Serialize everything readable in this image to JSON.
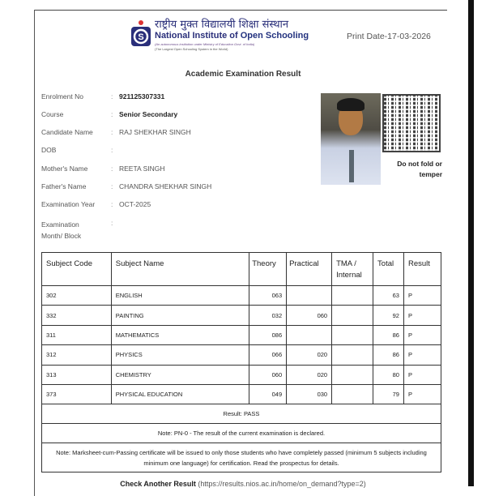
{
  "header": {
    "hindi_name": "राष्ट्रीय मुक्त विद्यालयी शिक्षा संस्थान",
    "english_name_part1": "National Institute of ",
    "english_name_part2": "Open Schooling",
    "subtitle1": "(An autonomous institution under Ministry of Education Govt. of India)",
    "subtitle2": "(The Largest Open Schooling System in the World)",
    "print_date": "Print Date-17-03-2026"
  },
  "title": "Academic Examination Result",
  "candidate": [
    {
      "label": "Enrolment No",
      "value": "921125307331",
      "bold": true
    },
    {
      "label": "Course",
      "value": "Senior Secondary",
      "bold": true
    },
    {
      "label": "Candidate Name",
      "value": "RAJ SHEKHAR SINGH"
    },
    {
      "label": "DOB",
      "value": ""
    },
    {
      "label": "Mother's Name",
      "value": "REETA SINGH"
    },
    {
      "label": "Father's Name",
      "value": "CHANDRA SHEKHAR SINGH"
    },
    {
      "label": "Examination Year",
      "value": "OCT-2025"
    },
    {
      "label": "Examination Month/ Block",
      "value": ""
    }
  ],
  "notice": "Do not fold or temper",
  "table": {
    "headers": [
      "Subject Code",
      "Subject Name",
      "Theory",
      "Practical",
      "TMA / Internal",
      "Total",
      "Result"
    ],
    "rows": [
      [
        "302",
        "ENGLISH",
        "063",
        "",
        "",
        "63",
        "P"
      ],
      [
        "332",
        "PAINTING",
        "032",
        "060",
        "",
        "92",
        "P"
      ],
      [
        "311",
        "MATHEMATICS",
        "086",
        "",
        "",
        "86",
        "P"
      ],
      [
        "312",
        "PHYSICS",
        "066",
        "020",
        "",
        "86",
        "P"
      ],
      [
        "313",
        "CHEMISTRY",
        "060",
        "020",
        "",
        "80",
        "P"
      ],
      [
        "373",
        "PHYSICAL EDUCATION",
        "049",
        "030",
        "",
        "79",
        "P"
      ]
    ],
    "result": "Result: PASS",
    "note1": "Note: PN-0 - The result of the current examination is declared.",
    "note2": "Note: Marksheet-cum-Passing certificate will be issued to only those students who have completely passed (minimum 5 subjects including minimum one language) for certification. Read the prospectus for details."
  },
  "footer": {
    "link_label": "Check Another Result",
    "link_url": "(https://results.nios.ac.in/home/on_demand?type=2)"
  }
}
